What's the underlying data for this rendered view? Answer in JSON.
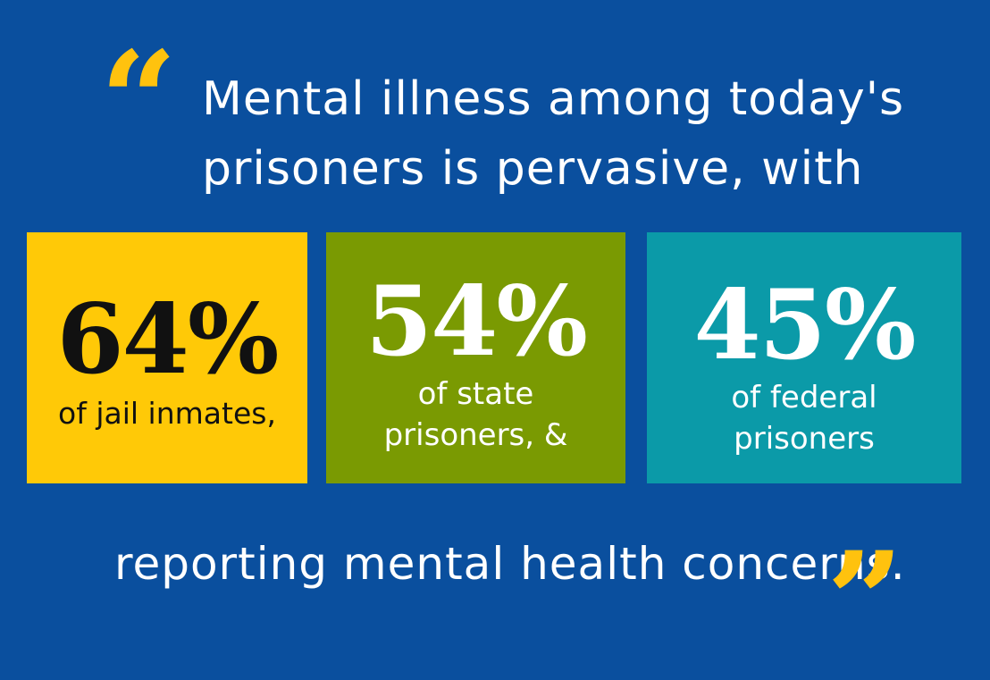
{
  "quotes": {
    "open": "“",
    "close": "”"
  },
  "headline": {
    "line1": "Mental illness among today's",
    "line2": "prisoners is pervasive, with"
  },
  "stats": [
    {
      "value": "64%",
      "label": "of jail inmates,"
    },
    {
      "value": "54%",
      "label": "of state\nprisoners, &"
    },
    {
      "value": "45%",
      "label": "of federal\nprisoners"
    }
  ],
  "footer": {
    "text": "reporting mental health concerns."
  },
  "colors": {
    "background": "#0a4f9e",
    "accent_yellow": "#ffc907",
    "box_green": "#7a9a02",
    "box_teal": "#0b9aa8",
    "text_white": "#ffffff",
    "text_dark": "#111111"
  }
}
